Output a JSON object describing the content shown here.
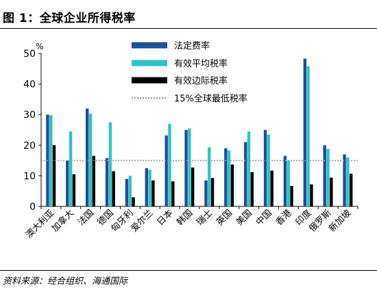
{
  "title": "图 1：全球企业所得税率",
  "source": "资料来源：经合组织、海通国际",
  "colors": {
    "statutory": "#1F4E9A",
    "average": "#2EC4C4",
    "marginal": "#000000",
    "min_line": "#999999"
  },
  "chart_data": {
    "type": "bar",
    "title": "",
    "xlabel": "",
    "ylabel": "%",
    "ylim": [
      0,
      50
    ],
    "yticks": [
      0,
      10,
      20,
      30,
      40,
      50
    ],
    "grid": false,
    "legend_position": "top-center",
    "categories": [
      "澳大利亚",
      "加拿大",
      "法国",
      "德国",
      "匈牙利",
      "爱尔兰",
      "日本",
      "韩国",
      "瑞士",
      "英国",
      "美国",
      "中国",
      "香港",
      "印度",
      "俄罗斯",
      "新加坡"
    ],
    "series": [
      {
        "name": "法定费率",
        "values": [
          30,
          15,
          32,
          15.8,
          9,
          12.5,
          23.2,
          25,
          8.5,
          19,
          21,
          25,
          16.5,
          48.3,
          20,
          17
        ]
      },
      {
        "name": "有效平均税率",
        "values": [
          29.8,
          24.5,
          30.3,
          27.5,
          10,
          12,
          27,
          25.5,
          19.3,
          18.3,
          24.5,
          23.5,
          15,
          45.8,
          18.8,
          16
        ]
      },
      {
        "name": "有效边际税率",
        "values": [
          20,
          10.5,
          16.5,
          11.5,
          3,
          8.5,
          8.2,
          12.7,
          9.3,
          13.7,
          11.2,
          11.7,
          6.7,
          7.2,
          9.4,
          10.7
        ]
      }
    ],
    "reference_line": {
      "name": "15%全球最低税率",
      "value": 15
    }
  }
}
